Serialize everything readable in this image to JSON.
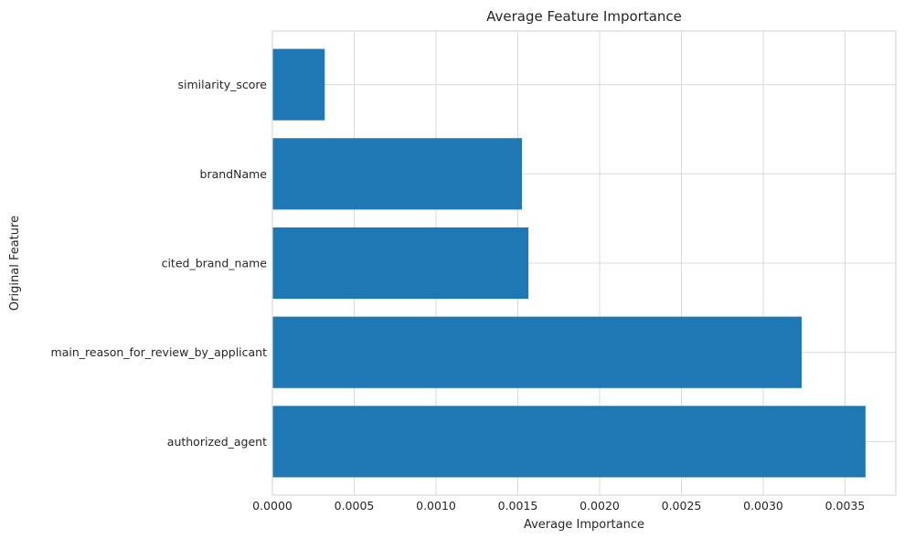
{
  "chart_data": {
    "type": "bar",
    "orientation": "horizontal",
    "title": "Average Feature Importance",
    "xlabel": "Average Importance",
    "ylabel": "Original Feature",
    "categories": [
      "authorized_agent",
      "main_reason_for_review_by_applicant",
      "cited_brand_name",
      "brandName",
      "similarity_score"
    ],
    "values": [
      0.003625,
      0.003235,
      0.001565,
      0.001525,
      0.00032
    ],
    "xlim": [
      0,
      0.00381
    ],
    "xticks": [
      0,
      0.0005,
      0.001,
      0.0015,
      0.002,
      0.0025,
      0.003,
      0.0035
    ],
    "xtick_labels": [
      "0.0000",
      "0.0005",
      "0.0010",
      "0.0015",
      "0.0020",
      "0.0025",
      "0.0030",
      "0.0035"
    ],
    "grid": true,
    "bar_color": "#1f77b4"
  }
}
